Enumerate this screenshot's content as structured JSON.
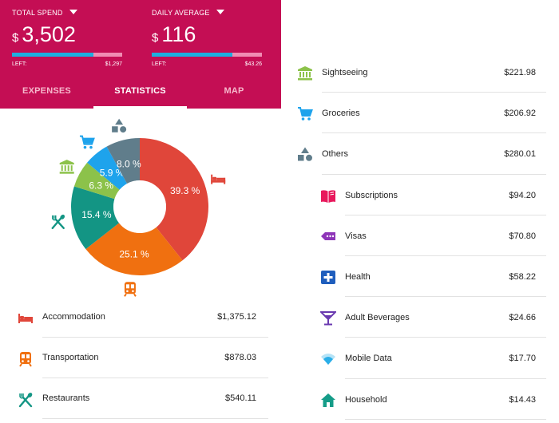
{
  "header": {
    "total": {
      "label": "TOTAL SPEND",
      "currency": "$",
      "value": "3,502",
      "left_label": "LEFT:",
      "left_value": "$1,297",
      "progress": 0.74
    },
    "daily": {
      "label": "DAILY AVERAGE",
      "currency": "$",
      "value": "116",
      "left_label": "LEFT:",
      "left_value": "$43.26",
      "progress": 0.73
    }
  },
  "tabs": [
    {
      "label": "EXPENSES"
    },
    {
      "label": "STATISTICS",
      "active": true
    },
    {
      "label": "MAP"
    }
  ],
  "chart_data": {
    "type": "pie",
    "style": "donut",
    "slices": [
      {
        "category": "Accommodation",
        "percent": 39.3,
        "label": "39.3 %",
        "color": "#e0463a",
        "icon": "bed-icon"
      },
      {
        "category": "Transportation",
        "percent": 25.1,
        "label": "25.1 %",
        "color": "#f07010",
        "icon": "train-icon"
      },
      {
        "category": "Restaurants",
        "percent": 15.4,
        "label": "15.4 %",
        "color": "#139584",
        "icon": "fork-knife-icon"
      },
      {
        "category": "Sightseeing",
        "percent": 6.3,
        "label": "6.3 %",
        "color": "#8cc24a",
        "icon": "museum-icon"
      },
      {
        "category": "Groceries",
        "percent": 5.9,
        "label": "5.9 %",
        "color": "#1ea3ec",
        "icon": "cart-icon"
      },
      {
        "category": "Others",
        "percent": 8.0,
        "label": "8.0 %",
        "color": "#607d8b",
        "icon": "shapes-icon"
      }
    ]
  },
  "categories_left": [
    {
      "name": "Accommodation",
      "amount": "$1,375.12",
      "icon": "bed-icon",
      "color": "#e0463a"
    },
    {
      "name": "Transportation",
      "amount": "$878.03",
      "icon": "train-icon",
      "color": "#f07010"
    },
    {
      "name": "Restaurants",
      "amount": "$540.11",
      "icon": "fork-knife-icon",
      "color": "#139584"
    }
  ],
  "categories_right": [
    {
      "name": "Sightseeing",
      "amount": "$221.98",
      "icon": "museum-icon",
      "color": "#8cc24a",
      "level": "top"
    },
    {
      "name": "Groceries",
      "amount": "$206.92",
      "icon": "cart-icon",
      "color": "#1ea3ec",
      "level": "top"
    },
    {
      "name": "Others",
      "amount": "$280.01",
      "icon": "shapes-icon",
      "color": "#607d8b",
      "level": "top"
    },
    {
      "name": "Subscriptions",
      "amount": "$94.20",
      "icon": "book-icon",
      "color": "#e8185c",
      "level": "sub"
    },
    {
      "name": "Visas",
      "amount": "$70.80",
      "icon": "ticket-icon",
      "color": "#8e35b8",
      "level": "sub"
    },
    {
      "name": "Health",
      "amount": "$58.22",
      "icon": "health-cross-icon",
      "color": "#1f5ebd",
      "level": "sub"
    },
    {
      "name": "Adult Beverages",
      "amount": "$24.66",
      "icon": "cocktail-icon",
      "color": "#6a3ab0",
      "level": "sub"
    },
    {
      "name": "Mobile Data",
      "amount": "$17.70",
      "icon": "wifi-icon",
      "color": "#2aaee8",
      "level": "sub"
    },
    {
      "name": "Household",
      "amount": "$14.43",
      "icon": "home-icon",
      "color": "#159c88",
      "level": "sub"
    }
  ]
}
